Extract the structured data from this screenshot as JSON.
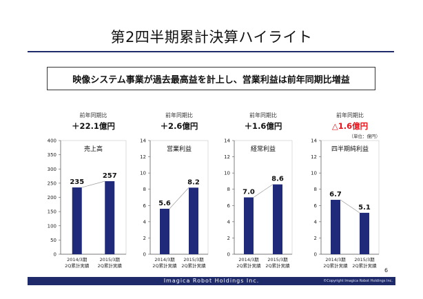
{
  "slide": {
    "title": "第2四半期累計決算ハイライト",
    "summary": "映像システム事業が過去最高益を計上し、営業利益は前年同期比増益",
    "unit_note": "（単位：億円）",
    "page_number": "6",
    "footer_logo": "Imagica Robot Holdings Inc.",
    "footer_copyright": "©Copyright Imagica Robot Holdings Inc."
  },
  "colors": {
    "bar": "#1f2a7a",
    "negative": "#e8131b",
    "rule": "#1f2a6b"
  },
  "chart_data": [
    {
      "type": "bar",
      "title": "売上高",
      "yoy_label": "前年同期比",
      "yoy_value": "＋22.1億円",
      "yoy_negative": false,
      "categories": [
        [
          "2014/3期",
          "2Q累計実績"
        ],
        [
          "2015/3期",
          "2Q累計実績"
        ]
      ],
      "values": [
        235,
        257
      ],
      "value_labels": [
        "235",
        "257"
      ],
      "ylim": [
        0,
        400
      ],
      "yticks": [
        0,
        50,
        100,
        150,
        200,
        250,
        300,
        350,
        400
      ],
      "grid": false
    },
    {
      "type": "bar",
      "title": "営業利益",
      "yoy_label": "前年同期比",
      "yoy_value": "＋2.6億円",
      "yoy_negative": false,
      "categories": [
        [
          "2014/3期",
          "2Q累計実績"
        ],
        [
          "2015/3期",
          "2Q累計実績"
        ]
      ],
      "values": [
        5.6,
        8.2
      ],
      "value_labels": [
        "5.6",
        "8.2"
      ],
      "ylim": [
        0,
        14
      ],
      "yticks": [
        0,
        2,
        4,
        6,
        8,
        10,
        12,
        14
      ],
      "grid": false
    },
    {
      "type": "bar",
      "title": "経常利益",
      "yoy_label": "前年同期比",
      "yoy_value": "＋1.6億円",
      "yoy_negative": false,
      "categories": [
        [
          "2014/3期",
          "2Q累計実績"
        ],
        [
          "2015/3期",
          "2Q累計実績"
        ]
      ],
      "values": [
        7.0,
        8.6
      ],
      "value_labels": [
        "7.0",
        "8.6"
      ],
      "ylim": [
        0,
        14
      ],
      "yticks": [
        0,
        2,
        4,
        6,
        8,
        10,
        12,
        14
      ],
      "grid": false
    },
    {
      "type": "bar",
      "title": "四半期純利益",
      "yoy_label": "前年同期比",
      "yoy_value": "△1.6億円",
      "yoy_negative": true,
      "categories": [
        [
          "2014/3期",
          "2Q累計実績"
        ],
        [
          "2015/3期",
          "2Q累計実績"
        ]
      ],
      "values": [
        6.7,
        5.1
      ],
      "value_labels": [
        "6.7",
        "5.1"
      ],
      "ylim": [
        0,
        14
      ],
      "yticks": [
        0,
        2,
        4,
        6,
        8,
        10,
        12,
        14
      ],
      "grid": false
    }
  ]
}
